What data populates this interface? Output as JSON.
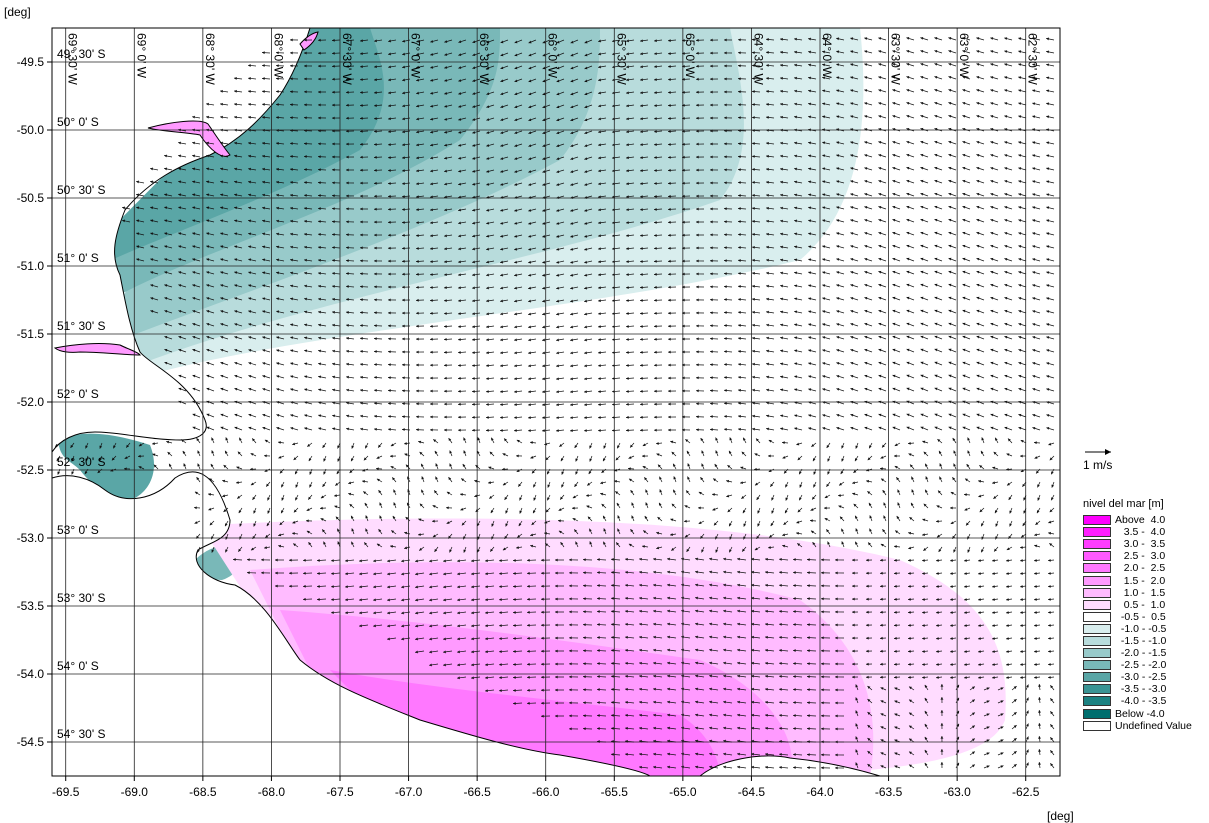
{
  "map": {
    "axis_unit_top": "[deg]",
    "axis_unit_bottom": "[deg]",
    "x_ticks": [
      "-69.5",
      "-69.0",
      "-68.5",
      "-68.0",
      "-67.5",
      "-67.0",
      "-66.5",
      "-66.0",
      "-65.5",
      "-65.0",
      "-64.5",
      "-64.0",
      "-63.5",
      "-63.0",
      "-62.5"
    ],
    "y_ticks": [
      "-49.5",
      "-50.0",
      "-50.5",
      "-51.0",
      "-51.5",
      "-52.0",
      "-52.5",
      "-53.0",
      "-53.5",
      "-54.0",
      "-54.5"
    ],
    "lat_labels": [
      "49° 30' S",
      "50° 0' S",
      "50° 30' S",
      "51° 0' S",
      "51° 30' S",
      "52° 0' S",
      "52° 30' S",
      "53° 0' S",
      "53° 30' S",
      "54° 0' S",
      "54° 30' S"
    ],
    "lon_labels": [
      "69° 30' W",
      "69° 0' W",
      "68° 30' W",
      "68° 0' W",
      "67° 30' W",
      "67° 0' W",
      "66° 30' W",
      "66° 0' W",
      "65° 30' W",
      "65° 0' W",
      "64° 30' W",
      "64° 0' W",
      "63° 30' W",
      "63° 0' W",
      "62° 30' W"
    ],
    "x_range": [
      -69.6,
      -62.25
    ],
    "y_range": [
      -54.75,
      -49.25
    ],
    "grid": true,
    "land_color": "#ffffff",
    "coast_color": "#000000"
  },
  "vector_scale": {
    "label": "1 m/s"
  },
  "legend": {
    "title": "nivel del mar [m]",
    "placement": "right",
    "items": [
      {
        "label": "Above  4.0",
        "color": "#ff00ff"
      },
      {
        "label": "   3.5 -  4.0",
        "color": "#ff1fff"
      },
      {
        "label": "   3.0 -  3.5",
        "color": "#ff3cff"
      },
      {
        "label": "   2.5 -  3.0",
        "color": "#ff5aff"
      },
      {
        "label": "   2.0 -  2.5",
        "color": "#ff78ff"
      },
      {
        "label": "   1.5 -  2.0",
        "color": "#ff9aff"
      },
      {
        "label": "   1.0 -  1.5",
        "color": "#ffbbff"
      },
      {
        "label": "   0.5 -  1.0",
        "color": "#ffdcff"
      },
      {
        "label": "  -0.5 -  0.5",
        "color": "#ffffff"
      },
      {
        "label": "  -1.0 - -0.5",
        "color": "#d9eeee"
      },
      {
        "label": "  -1.5 - -1.0",
        "color": "#b8dcdc"
      },
      {
        "label": "  -2.0 - -1.5",
        "color": "#98caca"
      },
      {
        "label": "  -2.5 - -2.0",
        "color": "#79b8b8"
      },
      {
        "label": "  -3.0 - -2.5",
        "color": "#5aa6a6"
      },
      {
        "label": "  -3.5 - -3.0",
        "color": "#3a9494"
      },
      {
        "label": "  -4.0 - -3.5",
        "color": "#1c8282"
      },
      {
        "label": "Below -4.0",
        "color": "#006e6e"
      },
      {
        "label": "Undefined Value",
        "color": "#ffffff"
      }
    ]
  }
}
